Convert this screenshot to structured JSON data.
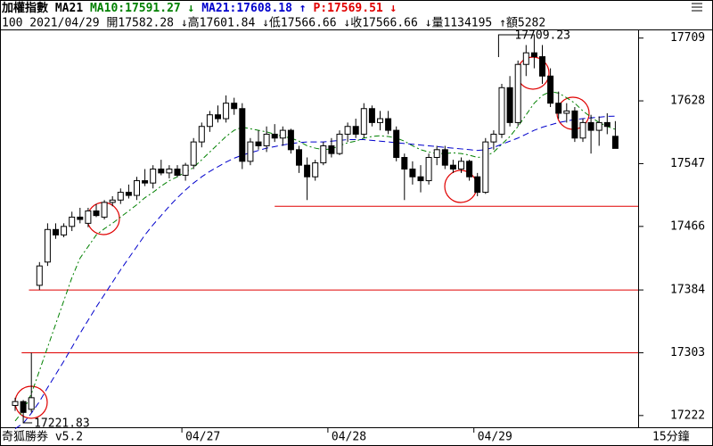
{
  "chart_data": {
    "type": "candlestick",
    "title": "加權指數",
    "indicator": "MA21",
    "price_label": "P:17569.51 ↓",
    "info": "100 2021/04/29 開17582.28 ↓高17601.84 ↓低17566.66 ↓收17566.66 ↓量1134195 ↑額5282",
    "brand": "奇狐勝券 v5.2",
    "period": "15分鐘",
    "annotations": [
      {
        "text": "17709.23"
      },
      {
        "text": "17221.83"
      }
    ],
    "up_color": "#ffffff",
    "down_color": "#000000",
    "categories": [
      null,
      null,
      null,
      null,
      null,
      null,
      null,
      null,
      null,
      null,
      null,
      null,
      null,
      null,
      null,
      null,
      null,
      null,
      null,
      null,
      null,
      "04/27",
      null,
      null,
      null,
      null,
      null,
      null,
      null,
      null,
      null,
      null,
      null,
      null,
      null,
      null,
      null,
      null,
      null,
      "04/28",
      null,
      null,
      null,
      null,
      null,
      null,
      null,
      null,
      null,
      null,
      null,
      null,
      null,
      null,
      null,
      null,
      null,
      "04/29",
      null,
      null,
      null,
      null,
      null,
      null,
      null,
      null,
      null,
      null,
      null,
      null,
      null,
      null,
      null,
      null,
      null
    ],
    "open": [
      17235,
      17240,
      17230,
      17390,
      17420,
      17462,
      17455,
      17466,
      17478,
      17470,
      17486,
      17478,
      17497,
      17500,
      17510,
      17506,
      17525,
      17522,
      17540,
      17535,
      17540,
      17532,
      17545,
      17575,
      17595,
      17610,
      17605,
      17625,
      17618,
      17550,
      17575,
      17570,
      17585,
      17580,
      17590,
      17565,
      17545,
      17530,
      17548,
      17570,
      17560,
      17585,
      17595,
      17585,
      17618,
      17600,
      17605,
      17590,
      17555,
      17540,
      17530,
      17525,
      17555,
      17565,
      17545,
      17540,
      17550,
      17530,
      17510,
      17575,
      17585,
      17645,
      17600,
      17675,
      17690,
      17685,
      17660,
      17625,
      17612,
      17615,
      17580,
      17600,
      17590,
      17600,
      17582.28
    ],
    "high": [
      17245,
      17242,
      17303,
      17420,
      17470,
      17470,
      17470,
      17485,
      17490,
      17490,
      17495,
      17500,
      17505,
      17515,
      17520,
      17530,
      17540,
      17545,
      17552,
      17545,
      17545,
      17548,
      17580,
      17600,
      17615,
      17622,
      17635,
      17632,
      17625,
      17580,
      17590,
      17595,
      17598,
      17595,
      17592,
      17570,
      17555,
      17552,
      17575,
      17580,
      17590,
      17600,
      17605,
      17625,
      17622,
      17615,
      17615,
      17595,
      17560,
      17550,
      17545,
      17560,
      17570,
      17570,
      17552,
      17555,
      17552,
      17535,
      17580,
      17590,
      17650,
      17660,
      17680,
      17700,
      17709.23,
      17700,
      17670,
      17640,
      17625,
      17620,
      17605,
      17610,
      17608,
      17612,
      17601.84
    ],
    "low": [
      17228,
      17221.83,
      17226,
      17384,
      17415,
      17450,
      17452,
      17460,
      17470,
      17465,
      17478,
      17475,
      17492,
      17495,
      17502,
      17500,
      17518,
      17515,
      17532,
      17528,
      17530,
      17525,
      17540,
      17568,
      17588,
      17600,
      17600,
      17610,
      17540,
      17545,
      17565,
      17562,
      17575,
      17570,
      17560,
      17535,
      17500,
      17525,
      17545,
      17555,
      17558,
      17575,
      17580,
      17580,
      17595,
      17590,
      17585,
      17550,
      17500,
      17520,
      17510,
      17520,
      17545,
      17540,
      17535,
      17535,
      17525,
      17505,
      17508,
      17565,
      17580,
      17595,
      17595,
      17660,
      17670,
      17650,
      17620,
      17605,
      17600,
      17575,
      17575,
      17560,
      17570,
      17585,
      17566.66
    ],
    "close": [
      17240,
      17226,
      17245,
      17415,
      17462,
      17455,
      17466,
      17478,
      17475,
      17486,
      17480,
      17497,
      17500,
      17510,
      17506,
      17525,
      17522,
      17540,
      17535,
      17540,
      17532,
      17545,
      17575,
      17595,
      17610,
      17605,
      17625,
      17618,
      17550,
      17575,
      17570,
      17585,
      17580,
      17590,
      17565,
      17545,
      17530,
      17548,
      17570,
      17560,
      17585,
      17595,
      17585,
      17618,
      17600,
      17605,
      17590,
      17555,
      17540,
      17530,
      17525,
      17555,
      17565,
      17545,
      17540,
      17550,
      17530,
      17510,
      17575,
      17585,
      17645,
      17600,
      17675,
      17690,
      17685,
      17660,
      17625,
      17612,
      17615,
      17580,
      17600,
      17590,
      17600,
      17595,
      17566.66
    ],
    "series": [
      {
        "name": "MA10:17591.27 ↓",
        "color": "#008000",
        "dash": "6 3 2 3",
        "values": [
          17215,
          17228,
          17250,
          17280,
          17310,
          17340,
          17370,
          17400,
          17425,
          17440,
          17455,
          17463,
          17470,
          17478,
          17486,
          17494,
          17503,
          17510,
          17518,
          17525,
          17530,
          17536,
          17542,
          17552,
          17562,
          17572,
          17582,
          17590,
          17594,
          17592,
          17590,
          17588,
          17585,
          17582,
          17580,
          17576,
          17570,
          17567,
          17565,
          17566,
          17570,
          17574,
          17576,
          17580,
          17582,
          17583,
          17582,
          17580,
          17576,
          17570,
          17565,
          17562,
          17560,
          17560,
          17561,
          17560,
          17558,
          17555,
          17556,
          17562,
          17572,
          17582,
          17595,
          17610,
          17625,
          17635,
          17640,
          17638,
          17632,
          17625,
          17615,
          17607,
          17600,
          17595,
          17591.27
        ]
      },
      {
        "name": "MA21:17608.18 ↑",
        "color": "#0000cc",
        "dash": "7 4",
        "values": [
          17205,
          17212,
          17225,
          17240,
          17258,
          17275,
          17292,
          17310,
          17328,
          17345,
          17362,
          17378,
          17394,
          17410,
          17425,
          17440,
          17455,
          17468,
          17480,
          17492,
          17503,
          17513,
          17522,
          17530,
          17537,
          17543,
          17549,
          17554,
          17558,
          17561,
          17564,
          17567,
          17569,
          17571,
          17573,
          17574,
          17575,
          17575,
          17575,
          17576,
          17577,
          17578,
          17578,
          17578,
          17577,
          17576,
          17575,
          17574,
          17573,
          17572,
          17571,
          17570,
          17569,
          17568,
          17567,
          17566,
          17565,
          17564,
          17565,
          17568,
          17572,
          17576,
          17580,
          17585,
          17590,
          17594,
          17597,
          17600,
          17602,
          17604,
          17605,
          17606,
          17607,
          17608,
          17608.18
        ]
      }
    ],
    "hlines": [
      17492,
      17384,
      17303
    ],
    "hline_color": "#e00000",
    "ylim": [
      17208,
      17719
    ],
    "yticks": [
      17222,
      17303,
      17384,
      17466,
      17547,
      17628,
      17709
    ]
  }
}
